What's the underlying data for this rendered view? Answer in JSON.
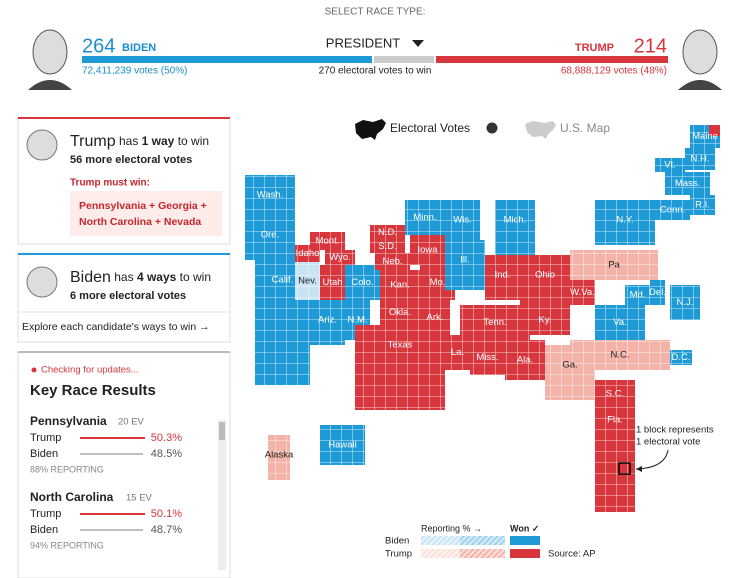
{
  "header": {
    "select_label": "SELECT RACE TYPE:",
    "race": "PRESIDENT",
    "threshold": "270 electoral votes to win",
    "biden": {
      "ev": "264",
      "name": "BIDEN",
      "votes": "72,411,239 votes (50%)"
    },
    "trump": {
      "ev": "214",
      "name": "TRUMP",
      "votes": "68,888,129 votes (48%)"
    }
  },
  "trump_card": {
    "name": "Trump",
    "pre": " has ",
    "ways": "1 way",
    "post": " to win",
    "needed": "56 more electoral votes",
    "must_label": "Trump must win:",
    "must_lines": [
      "Pennsylvania + Georgia +",
      "North Carolina + Nevada"
    ]
  },
  "biden_card": {
    "name": "Biden",
    "pre": " has ",
    "ways": "4 ways",
    "post": " to win",
    "needed": "6 more electoral votes",
    "explore": "Explore each candidate's ways to win →"
  },
  "key_races": {
    "status": "Checking for updates...",
    "title": "Key Race Results",
    "races": [
      {
        "state": "Pennsylvania",
        "ev": "20 EV",
        "rows": [
          {
            "name": "Trump",
            "pct": "50.3%"
          },
          {
            "name": "Biden",
            "pct": "48.5%"
          }
        ],
        "reporting": "88% REPORTING"
      },
      {
        "state": "North Carolina",
        "ev": "15 EV",
        "rows": [
          {
            "name": "Trump",
            "pct": "50.1%"
          },
          {
            "name": "Biden",
            "pct": "48.7%"
          }
        ],
        "reporting": "94% REPORTING"
      }
    ]
  },
  "map": {
    "toggle": [
      "Electoral Votes",
      "U.S. Map"
    ],
    "states": [
      "Wash.",
      "Ore.",
      "Calif.",
      "Nev.",
      "Idaho",
      "Mont.",
      "Wyo.",
      "Utah",
      "Colo.",
      "Ariz.",
      "N.M.",
      "N.D.",
      "S.D.",
      "Neb.",
      "Kan.",
      "Okla.",
      "Texas",
      "Minn.",
      "Iowa",
      "Mo.",
      "Ark.",
      "La.",
      "Wis.",
      "Ill.",
      "Mich.",
      "Ind.",
      "Ohio",
      "Ky.",
      "Tenn.",
      "Miss.",
      "Ala.",
      "Ga.",
      "Fla.",
      "S.C.",
      "N.C.",
      "Va.",
      "W.Va.",
      "Pa",
      "Md.",
      "Del.",
      "N.J.",
      "N.Y.",
      "Conn.",
      "R.I.",
      "Mass.",
      "Vt.",
      "N.H.",
      "Maine",
      "D.C.",
      "Alaska",
      "Hawaii"
    ],
    "annotation": [
      "1 block represents",
      "1 electoral vote"
    ]
  },
  "legend": {
    "reporting": "Reporting % →",
    "won": "Won ✓",
    "biden": "Biden",
    "trump": "Trump",
    "source": "Source: AP"
  }
}
